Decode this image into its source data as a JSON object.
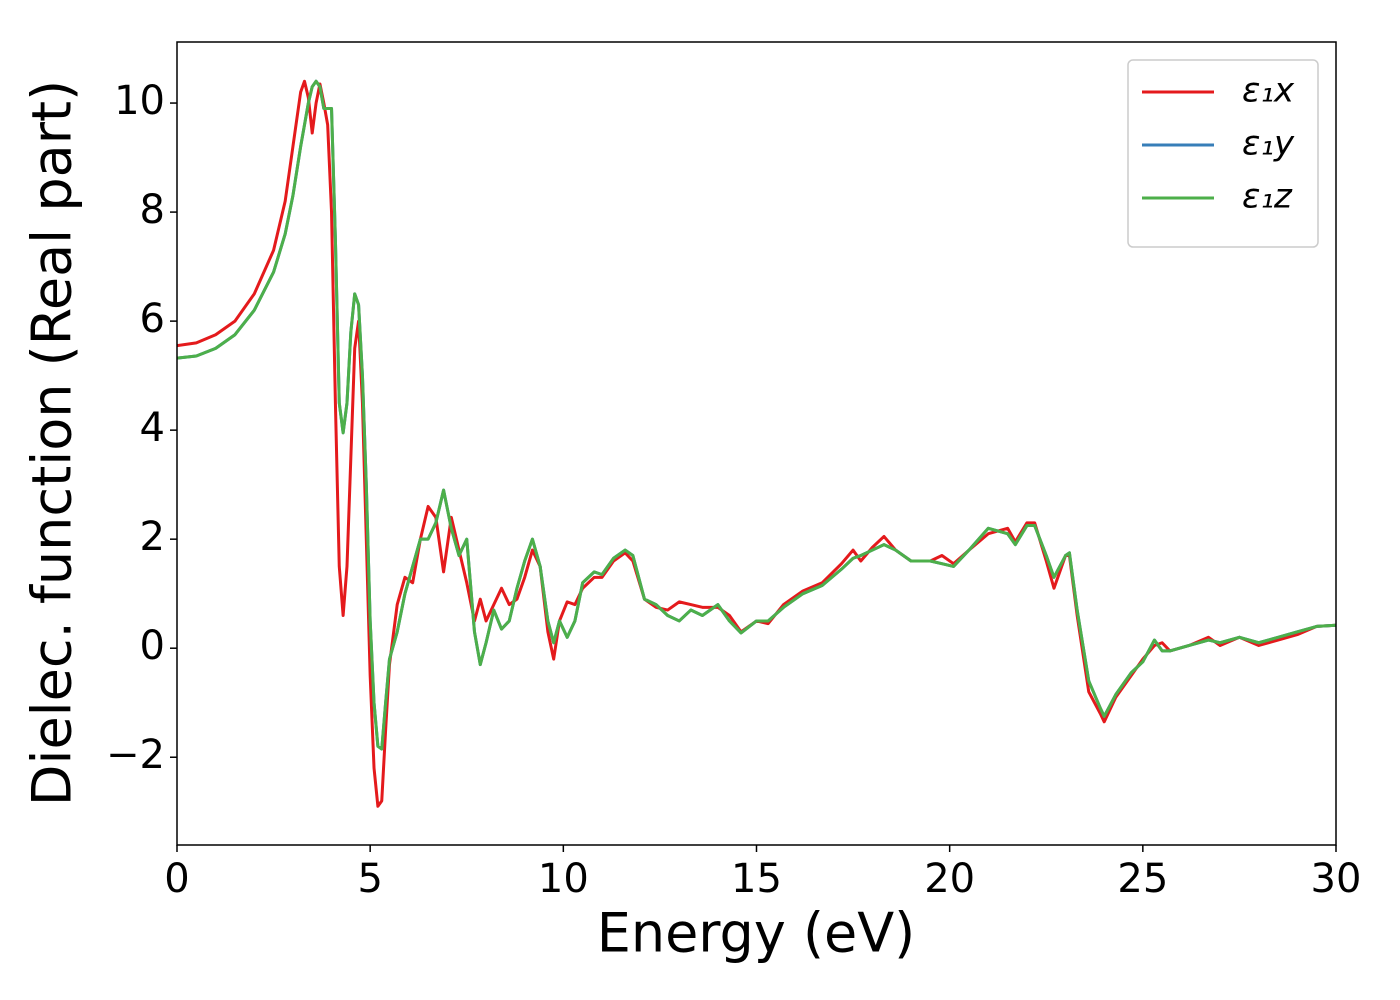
{
  "chart_data": {
    "type": "line",
    "xlabel": "Energy (eV)",
    "ylabel": "Dielec. function (Real part)",
    "xlim": [
      0,
      30
    ],
    "ylim": [
      -3.61,
      11.12
    ],
    "xticks": [
      0,
      5,
      10,
      15,
      20,
      25,
      30
    ],
    "yticks": [
      {
        "value": -2,
        "label": "−2"
      },
      0,
      2,
      4,
      6,
      8,
      10
    ],
    "legend": "upper right",
    "x": [
      0,
      0.5,
      1,
      1.5,
      2,
      2.5,
      2.8,
      3.0,
      3.2,
      3.3,
      3.4,
      3.5,
      3.6,
      3.7,
      3.8,
      3.9,
      4.0,
      4.1,
      4.2,
      4.3,
      4.4,
      4.5,
      4.6,
      4.7,
      4.8,
      4.9,
      5.0,
      5.1,
      5.2,
      5.3,
      5.4,
      5.5,
      5.7,
      5.9,
      6.1,
      6.3,
      6.5,
      6.7,
      6.9,
      7.1,
      7.3,
      7.5,
      7.7,
      7.85,
      8.0,
      8.2,
      8.4,
      8.6,
      8.8,
      9.0,
      9.2,
      9.4,
      9.6,
      9.75,
      9.9,
      10.1,
      10.3,
      10.5,
      10.8,
      11.0,
      11.3,
      11.6,
      11.8,
      12.1,
      12.4,
      12.7,
      13.0,
      13.3,
      13.6,
      14.0,
      14.3,
      14.6,
      15.0,
      15.3,
      15.7,
      16.2,
      16.7,
      17.2,
      17.5,
      17.7,
      18.0,
      18.3,
      18.6,
      19.0,
      19.5,
      19.8,
      20.1,
      20.5,
      21.0,
      21.5,
      21.7,
      22.0,
      22.2,
      22.5,
      22.7,
      23.0,
      23.1,
      23.3,
      23.6,
      23.9,
      24.0,
      24.3,
      24.7,
      25.0,
      25.3,
      25.5,
      25.7,
      26.2,
      26.7,
      27.0,
      27.5,
      28.0,
      28.5,
      29.0,
      29.5,
      30
    ],
    "series": [
      {
        "name": "ε₁x",
        "color": "#e41a1c",
        "values": [
          5.55,
          5.6,
          5.75,
          6.0,
          6.5,
          7.3,
          8.2,
          9.2,
          10.2,
          10.4,
          10.1,
          9.45,
          10.0,
          10.35,
          10.0,
          9.6,
          8.0,
          4.5,
          1.5,
          0.6,
          1.5,
          3.5,
          5.5,
          6.0,
          4.5,
          2.0,
          -0.5,
          -2.2,
          -2.9,
          -2.8,
          -1.5,
          -0.3,
          0.8,
          1.3,
          1.2,
          2.0,
          2.6,
          2.4,
          1.4,
          2.4,
          1.8,
          1.2,
          0.5,
          0.9,
          0.5,
          0.8,
          1.1,
          0.8,
          0.9,
          1.3,
          1.8,
          1.5,
          0.3,
          -0.2,
          0.5,
          0.85,
          0.8,
          1.1,
          1.3,
          1.3,
          1.6,
          1.75,
          1.6,
          0.9,
          0.75,
          0.7,
          0.85,
          0.8,
          0.75,
          0.75,
          0.6,
          0.3,
          0.5,
          0.45,
          0.8,
          1.05,
          1.2,
          1.55,
          1.8,
          1.6,
          1.85,
          2.05,
          1.8,
          1.6,
          1.6,
          1.7,
          1.55,
          1.8,
          2.1,
          2.2,
          1.95,
          2.3,
          2.3,
          1.6,
          1.1,
          1.7,
          1.7,
          0.6,
          -0.8,
          -1.2,
          -1.35,
          -0.9,
          -0.5,
          -0.2,
          0.05,
          0.1,
          -0.05,
          0.05,
          0.2,
          0.05,
          0.2,
          0.05,
          0.15,
          0.25,
          0.4,
          0.42
        ]
      },
      {
        "name": "ε₁y",
        "color": "#377eb8",
        "values": [
          5.32,
          5.36,
          5.5,
          5.75,
          6.2,
          6.9,
          7.6,
          8.3,
          9.2,
          9.6,
          10.0,
          10.3,
          10.4,
          10.3,
          9.9,
          9.9,
          9.9,
          7.5,
          4.5,
          3.95,
          4.5,
          5.8,
          6.5,
          6.3,
          5.0,
          3.0,
          0.5,
          -1.0,
          -1.8,
          -1.85,
          -1.0,
          -0.2,
          0.3,
          1.0,
          1.5,
          2.0,
          2.0,
          2.3,
          2.9,
          2.2,
          1.7,
          2.0,
          0.3,
          -0.3,
          0.1,
          0.7,
          0.35,
          0.5,
          1.1,
          1.6,
          2.0,
          1.5,
          0.5,
          0.1,
          0.5,
          0.2,
          0.5,
          1.2,
          1.4,
          1.35,
          1.65,
          1.8,
          1.7,
          0.9,
          0.8,
          0.6,
          0.5,
          0.7,
          0.6,
          0.8,
          0.5,
          0.28,
          0.5,
          0.5,
          0.75,
          1.0,
          1.15,
          1.45,
          1.65,
          1.7,
          1.8,
          1.9,
          1.8,
          1.6,
          1.6,
          1.55,
          1.5,
          1.8,
          2.2,
          2.1,
          1.9,
          2.25,
          2.25,
          1.7,
          1.3,
          1.7,
          1.75,
          0.7,
          -0.6,
          -1.1,
          -1.25,
          -0.85,
          -0.45,
          -0.25,
          0.15,
          -0.05,
          -0.05,
          0.05,
          0.15,
          0.1,
          0.2,
          0.1,
          0.2,
          0.3,
          0.4,
          0.42
        ]
      },
      {
        "name": "ε₁z",
        "color": "#4daf4a",
        "values": [
          5.32,
          5.36,
          5.5,
          5.75,
          6.2,
          6.9,
          7.6,
          8.3,
          9.2,
          9.6,
          10.0,
          10.3,
          10.4,
          10.3,
          9.9,
          9.9,
          9.9,
          7.5,
          4.5,
          3.95,
          4.5,
          5.8,
          6.5,
          6.3,
          5.0,
          3.0,
          0.5,
          -1.0,
          -1.8,
          -1.85,
          -1.0,
          -0.2,
          0.3,
          1.0,
          1.5,
          2.0,
          2.0,
          2.3,
          2.9,
          2.2,
          1.7,
          2.0,
          0.3,
          -0.3,
          0.1,
          0.7,
          0.35,
          0.5,
          1.1,
          1.6,
          2.0,
          1.5,
          0.5,
          0.1,
          0.5,
          0.2,
          0.5,
          1.2,
          1.4,
          1.35,
          1.65,
          1.8,
          1.7,
          0.9,
          0.8,
          0.6,
          0.5,
          0.7,
          0.6,
          0.8,
          0.5,
          0.28,
          0.5,
          0.5,
          0.75,
          1.0,
          1.15,
          1.45,
          1.65,
          1.7,
          1.8,
          1.9,
          1.8,
          1.6,
          1.6,
          1.55,
          1.5,
          1.8,
          2.2,
          2.1,
          1.9,
          2.25,
          2.25,
          1.7,
          1.3,
          1.7,
          1.75,
          0.7,
          -0.6,
          -1.1,
          -1.25,
          -0.85,
          -0.45,
          -0.25,
          0.15,
          -0.05,
          -0.05,
          0.05,
          0.15,
          0.1,
          0.2,
          0.1,
          0.2,
          0.3,
          0.4,
          0.42
        ]
      }
    ]
  }
}
